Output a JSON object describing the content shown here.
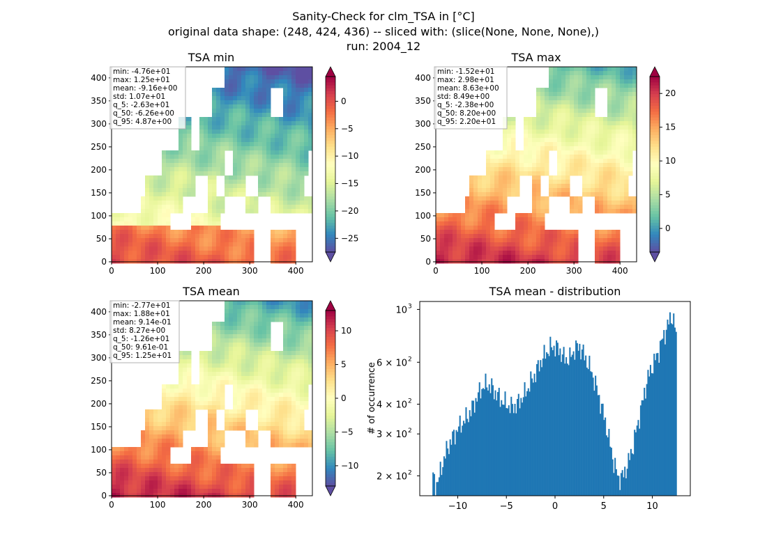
{
  "suptitle": {
    "line1": "Sanity-Check for clm_TSA in [°C]",
    "line2": "original data shape: (248, 424, 436) -- sliced with: (slice(None, None, None),)",
    "line3": "run: 2004_12"
  },
  "colors": {
    "map_palette": [
      "#5e4fa2",
      "#3288bd",
      "#66c2a5",
      "#abdda4",
      "#e6f598",
      "#ffffbf",
      "#fee08b",
      "#fdae61",
      "#f46d43",
      "#d53e4f",
      "#9e0142"
    ],
    "ocean": "#ffffff",
    "bar": "#1f77b4"
  },
  "chart_data": [
    {
      "type": "heatmap",
      "title": "TSA min",
      "x_ticks": [
        "0",
        "100",
        "200",
        "300",
        "400"
      ],
      "y_ticks": [
        "0",
        "50",
        "100",
        "150",
        "200",
        "250",
        "300",
        "350",
        "400"
      ],
      "xlim": [
        0,
        436
      ],
      "ylim": [
        0,
        424
      ],
      "colorbar": {
        "min": -27.5,
        "max": 4.5,
        "ticks": [
          "0",
          "−5",
          "−10",
          "−15",
          "−20",
          "−25"
        ],
        "tick_values": [
          0,
          -5,
          -10,
          -15,
          -20,
          -25
        ],
        "extend": "both"
      },
      "stats": [
        "min: -4.76e+01",
        "max: 1.25e+01",
        "mean: -9.16e+00",
        "std: 1.07e+01",
        "q_5: -2.63e+01",
        "q_50: -6.26e+00",
        "q_95: 4.87e+00"
      ]
    },
    {
      "type": "heatmap",
      "title": "TSA max",
      "x_ticks": [
        "0",
        "100",
        "200",
        "300",
        "400"
      ],
      "y_ticks": [
        "0",
        "50",
        "100",
        "150",
        "200",
        "250",
        "300",
        "350",
        "400"
      ],
      "xlim": [
        0,
        436
      ],
      "ylim": [
        0,
        424
      ],
      "colorbar": {
        "min": -3.5,
        "max": 22.5,
        "ticks": [
          "20",
          "15",
          "10",
          "5",
          "0"
        ],
        "tick_values": [
          20,
          15,
          10,
          5,
          0
        ],
        "extend": "both"
      },
      "stats": [
        "min: -1.52e+01",
        "max: 2.98e+01",
        "mean: 8.63e+00",
        "std: 8.49e+00",
        "q_5: -2.38e+00",
        "q_50: 8.20e+00",
        "q_95: 2.20e+01"
      ]
    },
    {
      "type": "heatmap",
      "title": "TSA mean",
      "x_ticks": [
        "0",
        "100",
        "200",
        "300",
        "400"
      ],
      "y_ticks": [
        "0",
        "50",
        "100",
        "150",
        "200",
        "250",
        "300",
        "350",
        "400"
      ],
      "xlim": [
        0,
        436
      ],
      "ylim": [
        0,
        424
      ],
      "colorbar": {
        "min": -13.0,
        "max": 13.0,
        "ticks": [
          "10",
          "5",
          "0",
          "−5",
          "−10"
        ],
        "tick_values": [
          10,
          5,
          0,
          -5,
          -10
        ],
        "extend": "both"
      },
      "stats": [
        "min: -2.77e+01",
        "max: 1.88e+01",
        "mean: 9.14e-01",
        "std: 8.27e+00",
        "q_5: -1.26e+01",
        "q_50: 9.61e-01",
        "q_95: 1.25e+01"
      ]
    },
    {
      "type": "bar",
      "title": "TSA mean - distribution",
      "ylabel": "# of occurrence",
      "yscale": "log",
      "xlim": [
        -13.9,
        13.9
      ],
      "ylim": [
        165,
        1080
      ],
      "x_ticks": [
        "−10",
        "−5",
        "0",
        "5",
        "10"
      ],
      "x_tick_values": [
        -10,
        -5,
        0,
        5,
        10
      ],
      "y_ticks": [
        "10",
        "6 × 10",
        "4 × 10",
        "3 × 10",
        "2 × 10"
      ],
      "y_tick_exponents": [
        "3",
        "2",
        "2",
        "2",
        "2"
      ],
      "y_tick_values": [
        1000,
        600,
        400,
        300,
        200
      ],
      "bin_start": -12.6,
      "bin_end": 12.5,
      "anchors": [
        [
          -12.6,
          200
        ],
        [
          -12.3,
          185
        ],
        [
          -12.0,
          190
        ],
        [
          -11.5,
          230
        ],
        [
          -11.0,
          265
        ],
        [
          -10.5,
          290
        ],
        [
          -10.0,
          315
        ],
        [
          -9.5,
          335
        ],
        [
          -9.0,
          355
        ],
        [
          -8.5,
          385
        ],
        [
          -8.0,
          430
        ],
        [
          -7.5,
          470
        ],
        [
          -7.0,
          485
        ],
        [
          -6.5,
          470
        ],
        [
          -6.0,
          440
        ],
        [
          -5.5,
          415
        ],
        [
          -5.0,
          400
        ],
        [
          -4.5,
          390
        ],
        [
          -4.0,
          395
        ],
        [
          -3.5,
          420
        ],
        [
          -3.0,
          450
        ],
        [
          -2.5,
          495
        ],
        [
          -2.0,
          540
        ],
        [
          -1.5,
          600
        ],
        [
          -1.0,
          650
        ],
        [
          -0.5,
          690
        ],
        [
          0.0,
          700
        ],
        [
          0.5,
          670
        ],
        [
          1.0,
          620
        ],
        [
          1.5,
          620
        ],
        [
          2.0,
          680
        ],
        [
          2.5,
          700
        ],
        [
          3.0,
          640
        ],
        [
          3.5,
          580
        ],
        [
          4.0,
          510
        ],
        [
          4.5,
          430
        ],
        [
          5.0,
          360
        ],
        [
          5.5,
          290
        ],
        [
          6.0,
          230
        ],
        [
          6.5,
          195
        ],
        [
          7.0,
          200
        ],
        [
          7.5,
          225
        ],
        [
          8.0,
          265
        ],
        [
          8.5,
          330
        ],
        [
          9.0,
          410
        ],
        [
          9.5,
          510
        ],
        [
          10.0,
          580
        ],
        [
          10.5,
          640
        ],
        [
          11.0,
          740
        ],
        [
          11.5,
          840
        ],
        [
          12.0,
          950
        ],
        [
          12.3,
          860
        ],
        [
          12.5,
          720
        ]
      ]
    }
  ]
}
